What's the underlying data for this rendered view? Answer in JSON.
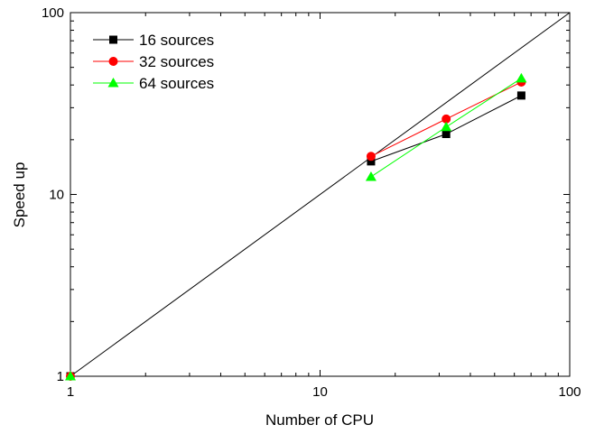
{
  "chart_data": {
    "type": "line",
    "xscale": "log",
    "yscale": "log",
    "xlim": [
      1,
      100
    ],
    "ylim": [
      1,
      100
    ],
    "xlabel": "Number of CPU",
    "ylabel": "Speed up",
    "x_ticks": [
      {
        "value": 1,
        "label": "1"
      },
      {
        "value": 10,
        "label": "10"
      },
      {
        "value": 100,
        "label": "100"
      }
    ],
    "y_ticks": [
      {
        "value": 1,
        "label": "1"
      },
      {
        "value": 10,
        "label": "10"
      },
      {
        "value": 100,
        "label": "100"
      }
    ],
    "legend_position": "top-left",
    "reference_line": {
      "x": [
        1,
        100
      ],
      "y": [
        1,
        100
      ],
      "color": "#000000"
    },
    "series": [
      {
        "name": "16 sources",
        "color": "#000000",
        "marker": "square",
        "x": [
          1,
          16,
          32,
          64
        ],
        "y": [
          1,
          15.2,
          21.5,
          35
        ]
      },
      {
        "name": "32 sources",
        "color": "#ff0000",
        "marker": "circle",
        "x": [
          1,
          16,
          32,
          64
        ],
        "y": [
          1,
          16.2,
          26,
          41.5
        ]
      },
      {
        "name": "64 sources",
        "color": "#00ff00",
        "marker": "triangle",
        "x": [
          1,
          16,
          32,
          64
        ],
        "y": [
          1,
          12.5,
          23.5,
          43.5
        ]
      }
    ]
  }
}
